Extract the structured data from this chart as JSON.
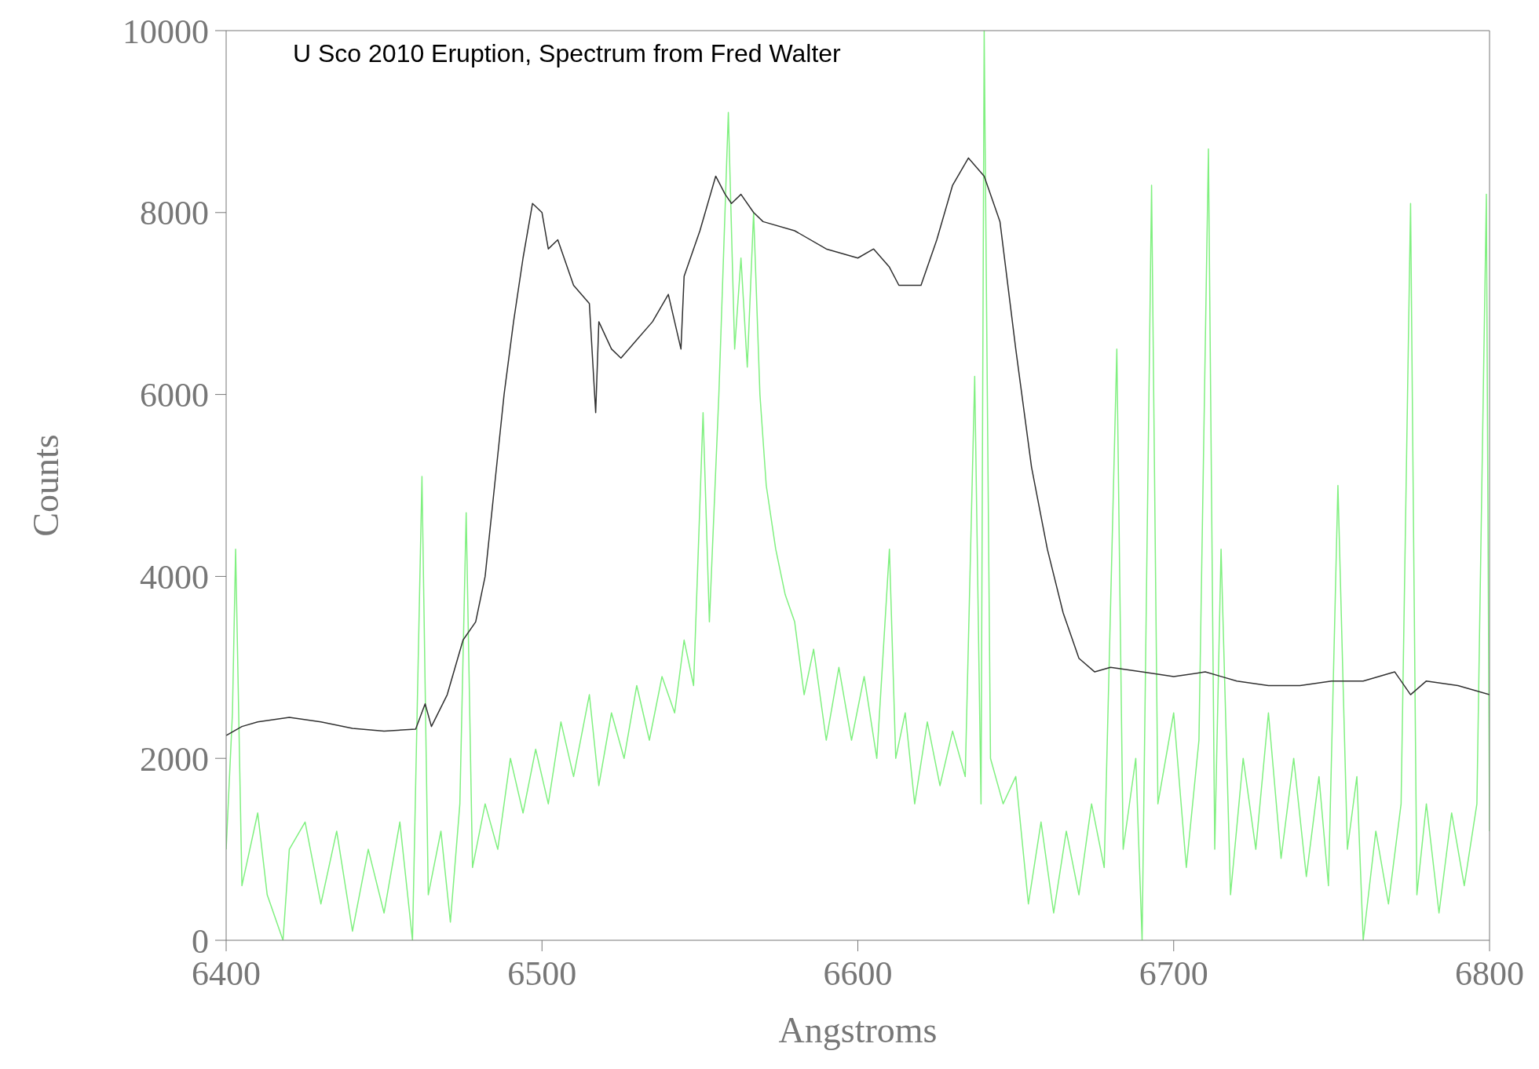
{
  "chart_data": {
    "type": "line",
    "xlabel": "Angstroms",
    "ylabel": "Counts",
    "annotations": [
      "U Sco 2010 Eruption, Spectrum from Fred Walter"
    ],
    "xlim": [
      6400,
      6800
    ],
    "xticks": [
      6400,
      6500,
      6600,
      6700,
      6800
    ],
    "ylim": [
      0,
      10000
    ],
    "yticks": [
      0,
      2000,
      4000,
      6000,
      8000,
      10000
    ],
    "grid": false,
    "legend": false,
    "marker": "none",
    "line_style": "solid",
    "series": [
      {
        "color": "#80f080",
        "x": [
          6400,
          6402,
          6403,
          6405,
          6410,
          6413,
          6418,
          6420,
          6425,
          6430,
          6435,
          6440,
          6445,
          6450,
          6455,
          6459,
          6462,
          6464,
          6468,
          6471,
          6474,
          6476,
          6478,
          6482,
          6486,
          6490,
          6494,
          6498,
          6502,
          6506,
          6510,
          6515,
          6518,
          6522,
          6526,
          6530,
          6534,
          6538,
          6542,
          6545,
          6548,
          6551,
          6553,
          6556,
          6559,
          6561,
          6563,
          6565,
          6567,
          6569,
          6571,
          6574,
          6577,
          6580,
          6583,
          6586,
          6590,
          6594,
          6598,
          6602,
          6606,
          6610,
          6612,
          6615,
          6618,
          6622,
          6626,
          6630,
          6634,
          6637,
          6639,
          6640,
          6642,
          6646,
          6650,
          6654,
          6658,
          6662,
          6666,
          6670,
          6674,
          6678,
          6682,
          6684,
          6688,
          6690,
          6693,
          6695,
          6700,
          6704,
          6708,
          6711,
          6713,
          6715,
          6718,
          6722,
          6726,
          6730,
          6734,
          6738,
          6742,
          6746,
          6749,
          6752,
          6755,
          6758,
          6760,
          6764,
          6768,
          6772,
          6775,
          6777,
          6780,
          6784,
          6788,
          6792,
          6796,
          6799,
          6800
        ],
        "values": [
          1000,
          2500,
          4300,
          600,
          1400,
          500,
          0,
          1000,
          1300,
          400,
          1200,
          100,
          1000,
          300,
          1300,
          0,
          5100,
          500,
          1200,
          200,
          1500,
          4700,
          800,
          1500,
          1000,
          2000,
          1400,
          2100,
          1500,
          2400,
          1800,
          2700,
          1700,
          2500,
          2000,
          2800,
          2200,
          2900,
          2500,
          3300,
          2800,
          5800,
          3500,
          6000,
          9100,
          6500,
          7500,
          6300,
          8000,
          6000,
          5000,
          4300,
          3800,
          3500,
          2700,
          3200,
          2200,
          3000,
          2200,
          2900,
          2000,
          4300,
          2000,
          2500,
          1500,
          2400,
          1700,
          2300,
          1800,
          6200,
          1500,
          10000,
          2000,
          1500,
          1800,
          400,
          1300,
          300,
          1200,
          500,
          1500,
          800,
          6500,
          1000,
          2000,
          0,
          8300,
          1500,
          2500,
          800,
          2200,
          8700,
          1000,
          4300,
          500,
          2000,
          1000,
          2500,
          900,
          2000,
          700,
          1800,
          600,
          5000,
          1000,
          1800,
          0,
          1200,
          400,
          1500,
          8100,
          500,
          1500,
          300,
          1400,
          600,
          1500,
          8200,
          1200
        ]
      },
      {
        "color": "#303030",
        "x": [
          6400,
          6405,
          6410,
          6420,
          6430,
          6440,
          6450,
          6460,
          6463,
          6465,
          6470,
          6475,
          6479,
          6482,
          6485,
          6488,
          6491,
          6494,
          6497,
          6500,
          6502,
          6505,
          6510,
          6515,
          6517,
          6518,
          6522,
          6525,
          6530,
          6535,
          6540,
          6544,
          6545,
          6550,
          6555,
          6558,
          6560,
          6563,
          6567,
          6570,
          6580,
          6590,
          6600,
          6605,
          6610,
          6613,
          6620,
          6625,
          6630,
          6635,
          6640,
          6645,
          6650,
          6655,
          6660,
          6665,
          6670,
          6675,
          6680,
          6690,
          6700,
          6710,
          6715,
          6720,
          6730,
          6740,
          6750,
          6760,
          6770,
          6775,
          6780,
          6790,
          6800
        ],
        "values": [
          2250,
          2350,
          2400,
          2450,
          2400,
          2330,
          2300,
          2320,
          2600,
          2350,
          2700,
          3300,
          3500,
          4000,
          5000,
          6000,
          6800,
          7500,
          8100,
          8000,
          7600,
          7700,
          7200,
          7000,
          5800,
          6800,
          6500,
          6400,
          6600,
          6800,
          7100,
          6500,
          7300,
          7800,
          8400,
          8200,
          8100,
          8200,
          8000,
          7900,
          7800,
          7600,
          7500,
          7600,
          7400,
          7200,
          7200,
          7700,
          8300,
          8600,
          8400,
          7900,
          6500,
          5200,
          4300,
          3600,
          3100,
          2950,
          3000,
          2950,
          2900,
          2950,
          2900,
          2850,
          2800,
          2800,
          2850,
          2850,
          2950,
          2700,
          2850,
          2800,
          2700
        ]
      }
    ]
  }
}
